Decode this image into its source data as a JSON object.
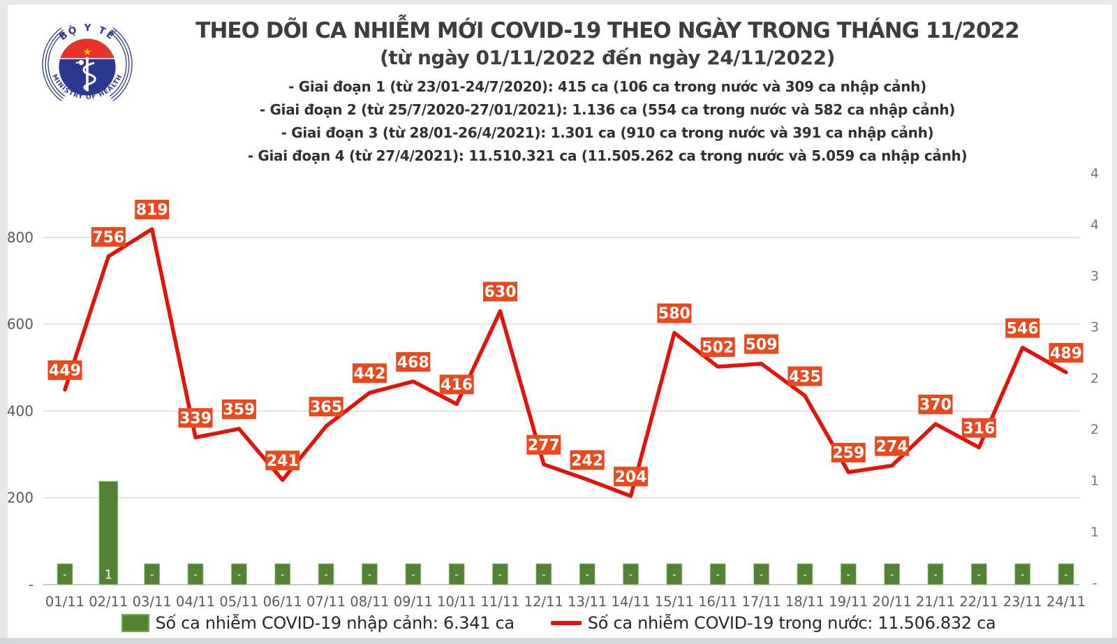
{
  "header": {
    "logo": {
      "top_text": "BỘ Y TẾ",
      "bottom_text": "MINISTRY OF HEALTH"
    },
    "title": "THEO DÕI CA NHIỄM MỚI COVID-19 THEO NGÀY TRONG THÁNG 11/2022",
    "subtitle": "(từ ngày 01/11/2022 đến ngày 24/11/2022)",
    "notes": [
      "- Giai đoạn 1 (từ 23/01-24/7/2020): 415 ca (106 ca trong nước và 309 ca nhập cảnh)",
      "- Giai đoạn 2 (từ 25/7/2020-27/01/2021): 1.136 ca (554 ca trong nước và 582 ca nhập cảnh)",
      "- Giai đoạn 3 (từ 28/01-26/4/2021): 1.301 ca (910 ca trong nước và 391 ca nhập cảnh)",
      "- Giai đoạn 4 (từ 27/4/2021): 11.510.321 ca (11.505.262 ca trong nước và 5.059 ca nhập cảnh)"
    ]
  },
  "chart_data": {
    "type": "line+bar combo",
    "categories": [
      "01/11",
      "02/11",
      "03/11",
      "04/11",
      "05/11",
      "06/11",
      "07/11",
      "08/11",
      "09/11",
      "10/11",
      "11/11",
      "12/11",
      "13/11",
      "14/11",
      "15/11",
      "16/11",
      "17/11",
      "18/11",
      "19/11",
      "20/11",
      "21/11",
      "22/11",
      "23/11",
      "24/11"
    ],
    "series": [
      {
        "name": "Số ca nhiễm COVID-19 trong nước",
        "type": "line",
        "color": "#e3120b",
        "axis": "left",
        "values": [
          449,
          756,
          819,
          339,
          359,
          241,
          365,
          442,
          468,
          416,
          630,
          277,
          242,
          204,
          580,
          502,
          509,
          435,
          259,
          274,
          370,
          316,
          546,
          489
        ]
      },
      {
        "name": "Số ca nhiễm COVID-19 nhập cảnh",
        "type": "bar",
        "color": "#548235",
        "axis": "right",
        "values": [
          0,
          1,
          0,
          0,
          0,
          0,
          0,
          0,
          0,
          0,
          0,
          0,
          0,
          0,
          0,
          0,
          0,
          0,
          0,
          0,
          0,
          0,
          0,
          0
        ],
        "labels": [
          "-",
          "1",
          "-",
          "-",
          "-",
          "-",
          "-",
          "-",
          "-",
          "-",
          "-",
          "-",
          "-",
          "-",
          "-",
          "-",
          "-",
          "-",
          "-",
          "-",
          "-",
          "-",
          "-",
          "-"
        ]
      }
    ],
    "left_axis": {
      "tick_labels": [
        "800",
        "600",
        "400",
        "200",
        "-"
      ],
      "tick_values": [
        800,
        600,
        400,
        200,
        0
      ]
    },
    "right_axis": {
      "tick_labels_top_to_bottom": [
        "4",
        "4",
        "3",
        "3",
        "2",
        "2",
        "1",
        "1",
        "-"
      ]
    },
    "grid": true,
    "legend_position": "bottom",
    "point_label_box_color": "#e9491d",
    "point_label_text_color": "#ffffff"
  },
  "legend": {
    "imported": {
      "label": "Số ca nhiễm COVID-19 nhập cảnh: 6.341 ca",
      "color": "#548235"
    },
    "domestic": {
      "label": "Số ca nhiễm COVID-19 trong nước: 11.506.832 ca",
      "color": "#e3120b"
    }
  },
  "colors": {
    "line_red": "#e3120b",
    "label_box_orange": "#e9491d",
    "bar_green": "#548235",
    "logo_navy": "#2b3990",
    "logo_red": "#e5332a",
    "star_yellow": "#ffd100",
    "grid_gray": "#dcdcdc",
    "axis_text_gray": "#595959"
  }
}
